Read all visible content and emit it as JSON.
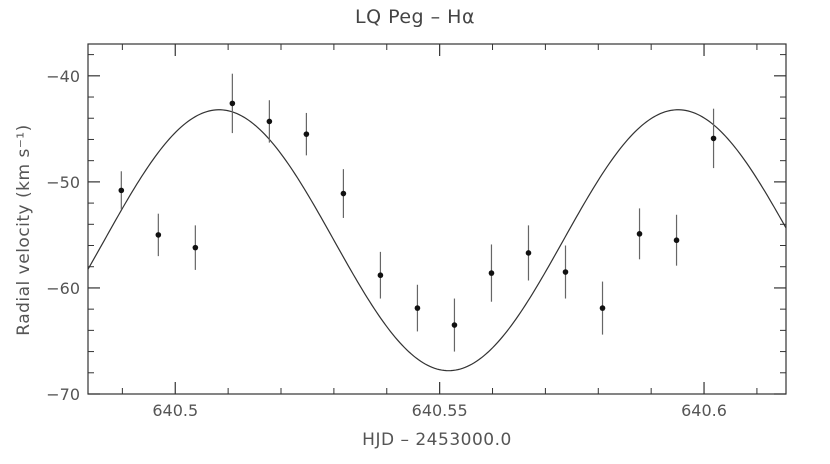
{
  "chart_data": {
    "type": "scatter",
    "title": "LQ Peg – Hα",
    "xlabel": "HJD – 2453000.0",
    "ylabel": "Radial velocity (km s⁻¹)",
    "xlim": [
      640.4835,
      640.6155
    ],
    "ylim": [
      -70,
      -37
    ],
    "xticks": [
      640.5,
      640.55,
      640.6
    ],
    "xtick_labels": [
      "640.5",
      "640.55",
      "640.6"
    ],
    "yticks": [
      -40,
      -50,
      -60,
      -70
    ],
    "ytick_labels": [
      "−40",
      "−50",
      "−60",
      "−70"
    ],
    "grid": false,
    "series": [
      {
        "kind": "points_with_errorbars",
        "x": [
          640.4898,
          640.4968,
          640.5038,
          640.5108,
          640.5178,
          640.5248,
          640.5318,
          640.5388,
          640.5458,
          640.5528,
          640.5598,
          640.5668,
          640.5738,
          640.5808,
          640.5878,
          640.5948,
          640.6018
        ],
        "y": [
          -50.8,
          -55.0,
          -56.2,
          -42.6,
          -44.3,
          -45.5,
          -51.1,
          -58.8,
          -61.9,
          -63.5,
          -58.6,
          -56.7,
          -58.5,
          -61.9,
          -54.9,
          -55.5,
          -45.9
        ],
        "yerr": [
          1.8,
          2.0,
          2.1,
          2.8,
          2.0,
          2.0,
          2.3,
          2.2,
          2.2,
          2.5,
          2.7,
          2.6,
          2.5,
          2.5,
          2.4,
          2.4,
          2.8
        ]
      },
      {
        "kind": "fit_curve",
        "model": "sine",
        "offset": -55.5,
        "amplitude": 12.3,
        "period": 0.0868,
        "peak_x": 640.5083
      }
    ]
  }
}
